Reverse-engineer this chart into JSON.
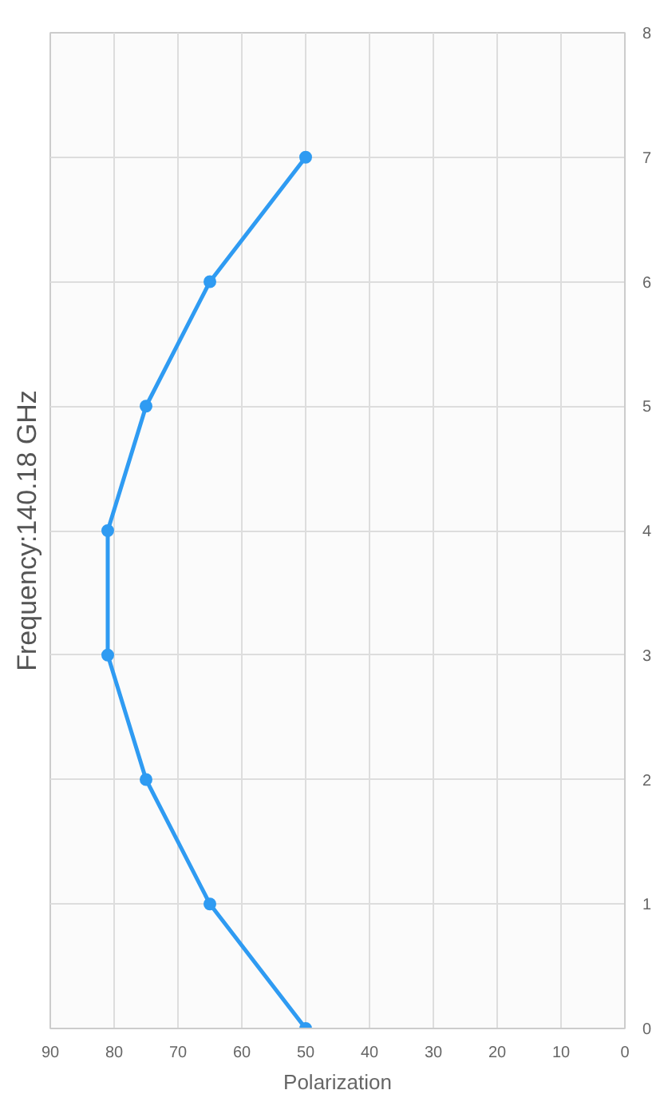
{
  "chart_data": {
    "type": "line",
    "title": "Frequency:140.18 GHz",
    "xlabel": "Polarization",
    "series": [
      {
        "color": "#2f9bf2",
        "x": [
          50,
          65,
          75,
          81,
          81,
          75,
          65,
          50
        ],
        "values": [
          0,
          1,
          2,
          3,
          4,
          5,
          6,
          7
        ]
      }
    ],
    "xlim": [
      90,
      0
    ],
    "xticks": [
      0,
      10,
      20,
      30,
      40,
      50,
      60,
      70,
      80,
      90
    ],
    "ylim": [
      0,
      8
    ],
    "yticks": [
      0,
      1,
      2,
      3,
      4,
      5,
      6,
      7,
      8
    ],
    "grid": true,
    "marker": "circle",
    "line_style": "solid"
  }
}
